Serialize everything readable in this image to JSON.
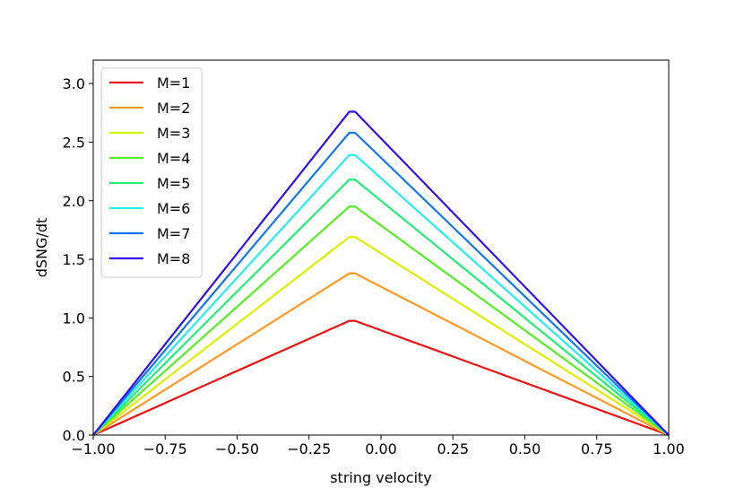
{
  "chart_data": {
    "type": "line",
    "title": "",
    "xlabel": "string velocity",
    "ylabel": "dSNG/dt",
    "xlim": [
      -1.0,
      1.0
    ],
    "ylim": [
      0.0,
      3.2
    ],
    "xticks": [
      -1.0,
      -0.75,
      -0.5,
      -0.25,
      0.0,
      0.25,
      0.5,
      0.75,
      1.0
    ],
    "xtick_labels": [
      "−1.00",
      "−0.75",
      "−0.50",
      "−0.25",
      "0.00",
      "0.25",
      "0.50",
      "0.75",
      "1.00"
    ],
    "yticks": [
      0.0,
      0.5,
      1.0,
      1.5,
      2.0,
      2.5,
      3.0
    ],
    "ytick_labels": [
      "0.0",
      "0.5",
      "1.0",
      "1.5",
      "2.0",
      "2.5",
      "3.0"
    ],
    "grid": false,
    "legend_position": "top-left",
    "x": [
      -1.0,
      -0.11,
      -0.09,
      1.0
    ],
    "series": [
      {
        "name": "M=1",
        "color": "#ee1111",
        "values": [
          0.0,
          0.975,
          0.975,
          0.0
        ]
      },
      {
        "name": "M=2",
        "color": "#ff9922",
        "values": [
          0.0,
          1.38,
          1.38,
          0.0
        ]
      },
      {
        "name": "M=3",
        "color": "#ddee00",
        "values": [
          0.0,
          1.69,
          1.69,
          0.0
        ]
      },
      {
        "name": "M=4",
        "color": "#55ee22",
        "values": [
          0.0,
          1.95,
          1.95,
          0.0
        ]
      },
      {
        "name": "M=5",
        "color": "#22ee77",
        "values": [
          0.0,
          2.18,
          2.18,
          0.0
        ]
      },
      {
        "name": "M=6",
        "color": "#22eeee",
        "values": [
          0.0,
          2.39,
          2.39,
          0.0
        ]
      },
      {
        "name": "M=7",
        "color": "#1177ee",
        "values": [
          0.0,
          2.58,
          2.58,
          0.0
        ]
      },
      {
        "name": "M=8",
        "color": "#3311ee",
        "values": [
          0.0,
          2.76,
          2.76,
          0.0
        ]
      }
    ]
  }
}
